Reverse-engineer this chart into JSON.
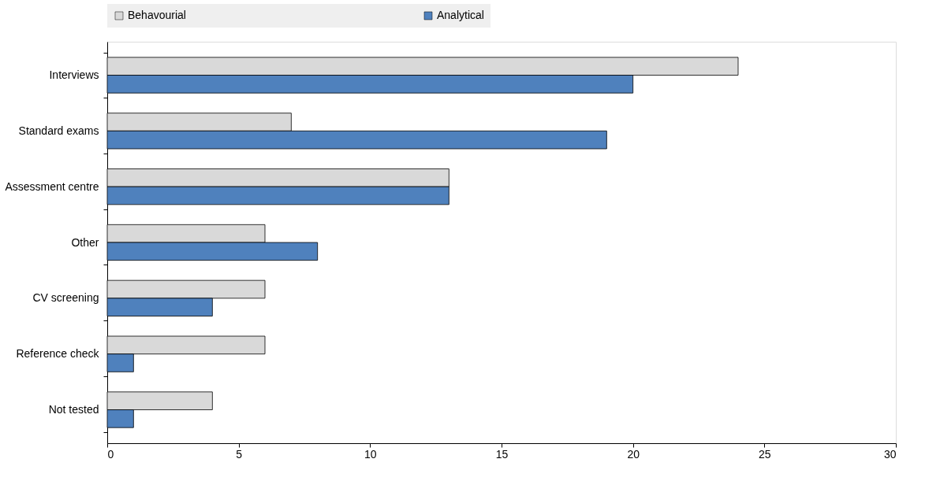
{
  "chart_data": {
    "type": "bar",
    "orientation": "horizontal",
    "categories": [
      "Interviews",
      "Standard exams",
      "Assessment centre",
      "Other",
      "CV screening",
      "Reference check",
      "Not tested"
    ],
    "series": [
      {
        "name": "Behavourial",
        "color": "#d9d9d9",
        "values": [
          24,
          7,
          13,
          6,
          6,
          6,
          4
        ]
      },
      {
        "name": "Analytical",
        "color": "#4f81bd",
        "values": [
          20,
          19,
          13,
          8,
          4,
          1,
          1
        ]
      }
    ],
    "xlim": [
      0,
      30
    ],
    "xticks": [
      0,
      5,
      10,
      15,
      20,
      25,
      30
    ],
    "grid": false,
    "legend": "top"
  }
}
